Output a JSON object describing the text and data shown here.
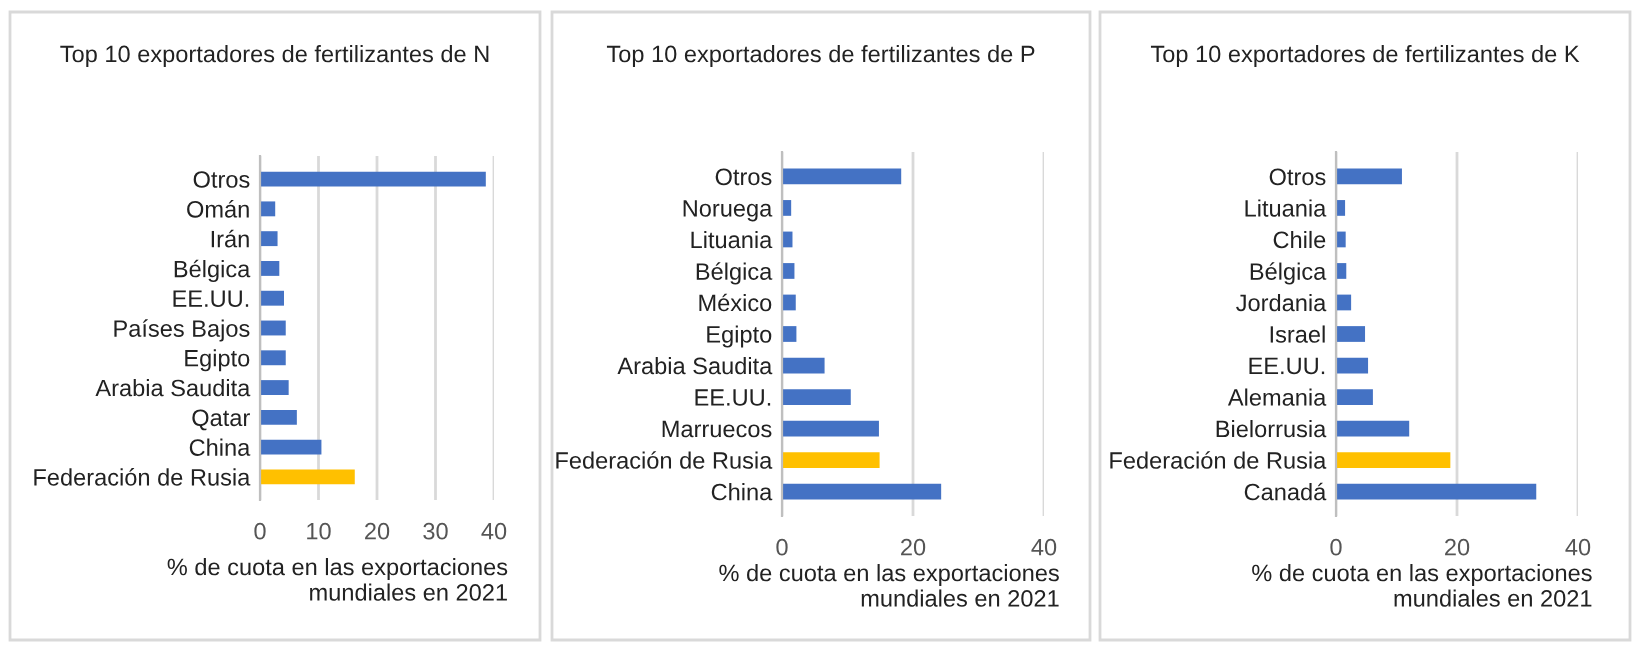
{
  "chart_data": [
    {
      "type": "bar",
      "orientation": "horizontal",
      "title": "Top 10 exportadores de fertilizantes de N",
      "xlabel": "% de cuota en las exportaciones\nmundiales en 2021",
      "categories": [
        "Otros",
        "Omán",
        "Irán",
        "Bélgica",
        "EE.UU.",
        "Países Bajos",
        "Egipto",
        "Arabia Saudita",
        "Qatar",
        "China",
        "Federación de Rusia"
      ],
      "values": [
        38.6,
        2.6,
        3.0,
        3.3,
        4.1,
        4.4,
        4.4,
        4.9,
        6.3,
        10.5,
        16.2
      ],
      "colors": [
        "#4472c4",
        "#4472c4",
        "#4472c4",
        "#4472c4",
        "#4472c4",
        "#4472c4",
        "#4472c4",
        "#4472c4",
        "#4472c4",
        "#4472c4",
        "#ffc000"
      ],
      "xlim": [
        0,
        40
      ],
      "xticks": [
        0,
        10,
        20,
        30,
        40
      ],
      "grid": "x"
    },
    {
      "type": "bar",
      "orientation": "horizontal",
      "title": "Top 10 exportadores de fertilizantes de P",
      "xlabel": "% de cuota en las exportaciones\nmundiales en 2021",
      "categories": [
        "Otros",
        "Noruega",
        "Lituania",
        "Bélgica",
        "México",
        "Egipto",
        "Arabia Saudita",
        "EE.UU.",
        "Marruecos",
        "Federación de Rusia",
        "China"
      ],
      "values": [
        18.2,
        1.4,
        1.6,
        1.9,
        2.1,
        2.2,
        6.5,
        10.5,
        14.8,
        14.9,
        24.3
      ],
      "colors": [
        "#4472c4",
        "#4472c4",
        "#4472c4",
        "#4472c4",
        "#4472c4",
        "#4472c4",
        "#4472c4",
        "#4472c4",
        "#4472c4",
        "#ffc000",
        "#4472c4"
      ],
      "xlim": [
        0,
        40
      ],
      "xticks": [
        0,
        20,
        40
      ],
      "grid": "x"
    },
    {
      "type": "bar",
      "orientation": "horizontal",
      "title": "Top 10 exportadores de fertilizantes de K",
      "xlabel": "% de cuota en las exportaciones\nmundiales en 2021",
      "categories": [
        "Otros",
        "Lituania",
        "Chile",
        "Bélgica",
        "Jordania",
        "Israel",
        "EE.UU.",
        "Alemania",
        "Bielorrusia",
        "Federación de Rusia",
        "Canadá"
      ],
      "values": [
        10.9,
        1.5,
        1.6,
        1.7,
        2.5,
        4.8,
        5.3,
        6.1,
        12.1,
        18.9,
        33.1
      ],
      "colors": [
        "#4472c4",
        "#4472c4",
        "#4472c4",
        "#4472c4",
        "#4472c4",
        "#4472c4",
        "#4472c4",
        "#4472c4",
        "#4472c4",
        "#ffc000",
        "#4472c4"
      ],
      "xlim": [
        0,
        40
      ],
      "xticks": [
        0,
        20,
        40
      ],
      "grid": "x"
    }
  ]
}
